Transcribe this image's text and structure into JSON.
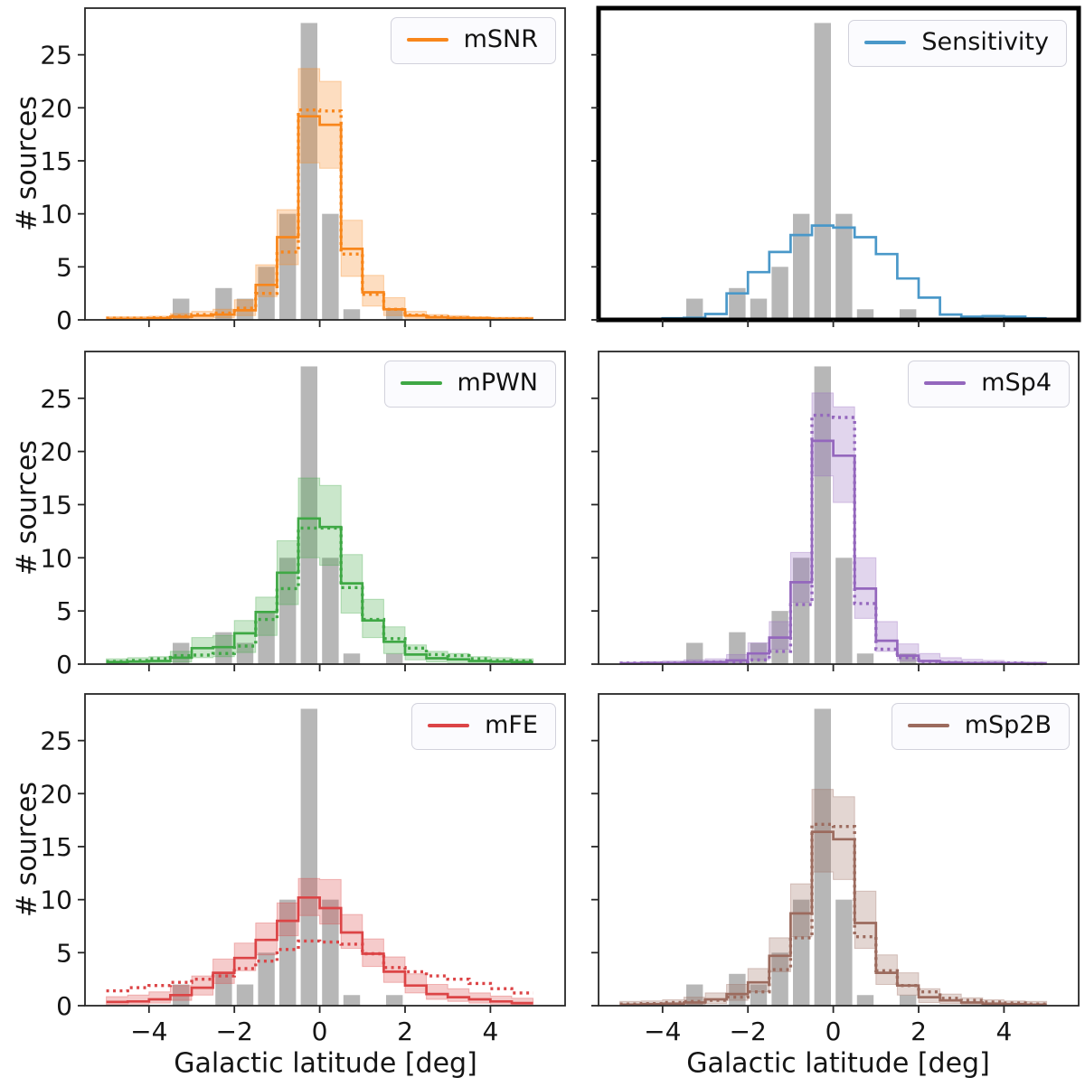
{
  "figure": {
    "ylabel": "# sources",
    "xlabel": "Galactic latitude [deg]",
    "yticks": [
      0,
      5,
      10,
      15,
      20,
      25
    ],
    "xticks": [
      -4,
      -2,
      0,
      2,
      4
    ],
    "background": "#ffffff"
  },
  "chart_data": {
    "type": "bar",
    "note": "2x3 grid of histograms; gray observed histogram repeated in every panel, each panel overlays one model as step lines (solid + dotted) with shaded band",
    "bin_edges": [
      -5,
      -4.5,
      -4,
      -3.5,
      -3,
      -2.5,
      -2,
      -1.5,
      -1,
      -0.5,
      0,
      0.5,
      1,
      1.5,
      2,
      2.5,
      3,
      3.5,
      4,
      4.5,
      5
    ],
    "observed": {
      "color": "#b7b7b7",
      "counts": [
        0,
        0,
        0,
        2,
        0,
        3,
        2,
        5,
        10,
        28,
        10,
        1,
        0,
        1,
        0,
        0,
        0,
        0,
        0,
        0
      ]
    },
    "ylim": [
      0,
      29.4
    ],
    "panels": [
      {
        "id": "msnr",
        "position": "top-left",
        "legend": "mSNR",
        "color": "#f8861b",
        "highlighted_border": false,
        "solid": [
          0.1,
          0.1,
          0.15,
          0.3,
          0.4,
          0.5,
          0.9,
          3.3,
          7.8,
          19.2,
          18.4,
          6.7,
          2.6,
          1.0,
          0.4,
          0.25,
          0.2,
          0.15,
          0.1,
          0.1
        ],
        "dotted": [
          0.15,
          0.15,
          0.2,
          0.35,
          0.5,
          0.65,
          1.1,
          2.5,
          6.4,
          19.8,
          19.7,
          6.2,
          2.4,
          1.0,
          0.45,
          0.3,
          0.2,
          0.15,
          0.1,
          0.1
        ],
        "band_lo": [
          0.05,
          0.05,
          0.05,
          0.1,
          0.15,
          0.2,
          0.4,
          2.2,
          5.2,
          14.8,
          14.3,
          4.1,
          1.3,
          0.4,
          0.15,
          0.1,
          0.05,
          0.05,
          0.05,
          0.05
        ],
        "band_hi": [
          0.3,
          0.3,
          0.35,
          0.6,
          0.8,
          1.0,
          1.9,
          5.2,
          10.4,
          23.7,
          22.5,
          9.4,
          4.2,
          2.1,
          0.8,
          0.5,
          0.4,
          0.3,
          0.25,
          0.25
        ]
      },
      {
        "id": "sensitivity",
        "position": "top-right",
        "legend": "Sensitivity",
        "color": "#4a98c9",
        "highlighted_border": true,
        "solid": [
          0.05,
          0.1,
          0.15,
          0.2,
          0.55,
          2.5,
          4.5,
          6.4,
          8.0,
          8.9,
          8.7,
          7.8,
          6.2,
          3.9,
          2.1,
          0.5,
          0.3,
          0.35,
          0.3,
          0.15
        ]
      },
      {
        "id": "mpwn",
        "position": "middle-left",
        "legend": "mPWN",
        "color": "#3fa845",
        "highlighted_border": false,
        "solid": [
          0.2,
          0.25,
          0.3,
          0.6,
          1.5,
          1.6,
          2.9,
          4.9,
          8.6,
          13.7,
          12.9,
          7.6,
          4.1,
          2.1,
          0.9,
          0.55,
          0.45,
          0.3,
          0.25,
          0.2
        ],
        "dotted": [
          0.25,
          0.35,
          0.5,
          0.8,
          0.85,
          1.0,
          1.7,
          4.2,
          7.1,
          12.8,
          12.8,
          7.2,
          4.2,
          2.4,
          1.5,
          0.9,
          0.8,
          0.5,
          0.35,
          0.3
        ],
        "band_lo": [
          0.05,
          0.1,
          0.1,
          0.2,
          0.6,
          0.7,
          1.1,
          2.7,
          5.6,
          10.0,
          9.3,
          4.8,
          2.5,
          1.0,
          0.4,
          0.2,
          0.15,
          0.1,
          0.1,
          0.05
        ],
        "band_hi": [
          0.5,
          0.6,
          0.7,
          1.2,
          2.5,
          2.7,
          4.1,
          6.3,
          11.6,
          17.5,
          16.8,
          10.3,
          6.1,
          3.5,
          1.8,
          1.2,
          1.0,
          0.7,
          0.6,
          0.5
        ]
      },
      {
        "id": "msp4",
        "position": "middle-right",
        "legend": "mSp4",
        "color": "#9467bd",
        "highlighted_border": false,
        "solid": [
          0.05,
          0.1,
          0.1,
          0.15,
          0.2,
          0.35,
          1.0,
          2.5,
          7.7,
          21.0,
          19.6,
          7.1,
          2.2,
          0.8,
          0.3,
          0.15,
          0.1,
          0.1,
          0.05,
          0.05
        ],
        "dotted": [
          0.1,
          0.1,
          0.1,
          0.15,
          0.2,
          0.2,
          0.4,
          1.2,
          5.6,
          23.4,
          23.2,
          5.7,
          1.4,
          0.6,
          0.25,
          0.15,
          0.1,
          0.1,
          0.1,
          0.05
        ],
        "band_lo": [
          0,
          0,
          0.05,
          0.05,
          0.05,
          0.1,
          0.4,
          1.4,
          5.8,
          17.7,
          15.2,
          4.3,
          1.2,
          0.3,
          0.1,
          0.05,
          0.05,
          0,
          0,
          0
        ],
        "band_hi": [
          0.2,
          0.25,
          0.3,
          0.4,
          0.5,
          0.9,
          2.0,
          4.0,
          10.5,
          25.5,
          24.2,
          10.0,
          4.0,
          1.9,
          1.0,
          0.6,
          0.45,
          0.35,
          0.25,
          0.2
        ]
      },
      {
        "id": "mfe",
        "position": "bottom-left",
        "legend": "mFE",
        "color": "#dc4446",
        "highlighted_border": false,
        "solid": [
          0.35,
          0.4,
          0.6,
          1.0,
          1.7,
          3.1,
          4.5,
          6.2,
          8.0,
          10.2,
          9.2,
          6.9,
          4.9,
          3.2,
          1.9,
          1.1,
          0.8,
          0.6,
          0.4,
          0.25
        ],
        "dotted": [
          1.4,
          1.7,
          1.9,
          2.2,
          2.5,
          2.8,
          3.5,
          4.2,
          5.3,
          6.1,
          6.0,
          5.8,
          4.9,
          3.6,
          3.2,
          2.8,
          2.5,
          2.1,
          1.6,
          1.2
        ],
        "band_lo": [
          0.1,
          0.15,
          0.25,
          0.5,
          1.0,
          2.1,
          3.3,
          4.8,
          6.6,
          8.5,
          7.7,
          5.4,
          3.7,
          2.2,
          1.2,
          0.6,
          0.4,
          0.25,
          0.15,
          0.1
        ],
        "band_hi": [
          0.85,
          1.0,
          1.3,
          1.9,
          2.8,
          4.4,
          5.9,
          7.8,
          9.7,
          12.0,
          11.9,
          8.6,
          6.3,
          4.6,
          3.0,
          2.0,
          1.6,
          1.2,
          0.9,
          0.7
        ]
      },
      {
        "id": "msp2b",
        "position": "bottom-right",
        "legend": "mSp2B",
        "color": "#9c6b5e",
        "highlighted_border": false,
        "solid": [
          0.1,
          0.15,
          0.2,
          0.3,
          0.6,
          1.1,
          2.2,
          4.7,
          8.7,
          16.4,
          15.7,
          7.8,
          3.1,
          1.9,
          0.8,
          0.5,
          0.3,
          0.2,
          0.15,
          0.1
        ],
        "dotted": [
          0.15,
          0.2,
          0.3,
          0.4,
          0.5,
          0.8,
          1.3,
          3.4,
          6.4,
          17.1,
          16.9,
          6.5,
          3.3,
          1.9,
          1.3,
          0.7,
          0.5,
          0.35,
          0.25,
          0.15
        ],
        "band_lo": [
          0.05,
          0.05,
          0.05,
          0.1,
          0.2,
          0.5,
          1.3,
          3.2,
          6.5,
          12.6,
          11.9,
          5.4,
          2.0,
          1.0,
          0.3,
          0.2,
          0.1,
          0.05,
          0.05,
          0.05
        ],
        "band_hi": [
          0.4,
          0.45,
          0.55,
          0.8,
          1.2,
          2.0,
          3.5,
          6.4,
          11.5,
          20.4,
          19.7,
          10.8,
          4.8,
          3.1,
          1.6,
          1.1,
          0.75,
          0.55,
          0.45,
          0.4
        ]
      }
    ]
  }
}
